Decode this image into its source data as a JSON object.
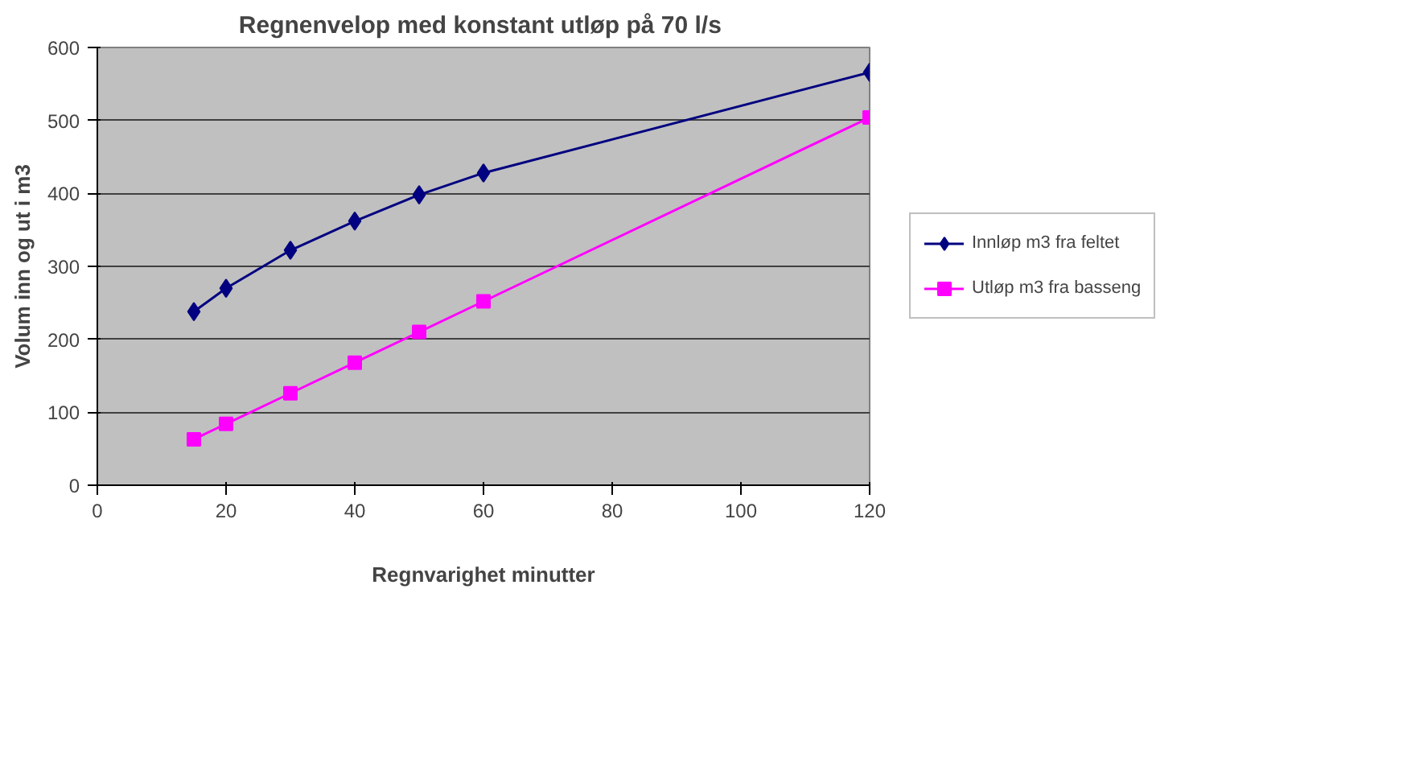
{
  "chart_data": {
    "type": "line",
    "title": "Regnenvelop med konstant utløp på 70  l/s",
    "xlabel": "Regnvarighet minutter",
    "ylabel": "Volum inn og ut i m3",
    "x": [
      15,
      20,
      30,
      40,
      50,
      60,
      120
    ],
    "series": [
      {
        "name": "Innløp m3 fra feltet",
        "color": "#000080",
        "marker": "diamond",
        "values": [
          238,
          270,
          322,
          362,
          398,
          428,
          566
        ]
      },
      {
        "name": "Utløp m3 fra basseng",
        "color": "#ff00ff",
        "marker": "square",
        "values": [
          63,
          84,
          126,
          168,
          210,
          252,
          504
        ]
      }
    ],
    "xlim": [
      0,
      120
    ],
    "xticks": [
      0,
      20,
      40,
      60,
      80,
      100,
      120
    ],
    "ylim": [
      0,
      600
    ],
    "yticks": [
      0,
      100,
      200,
      300,
      400,
      500,
      600
    ],
    "grid": "y",
    "legend": "right",
    "line_style": "solid"
  }
}
